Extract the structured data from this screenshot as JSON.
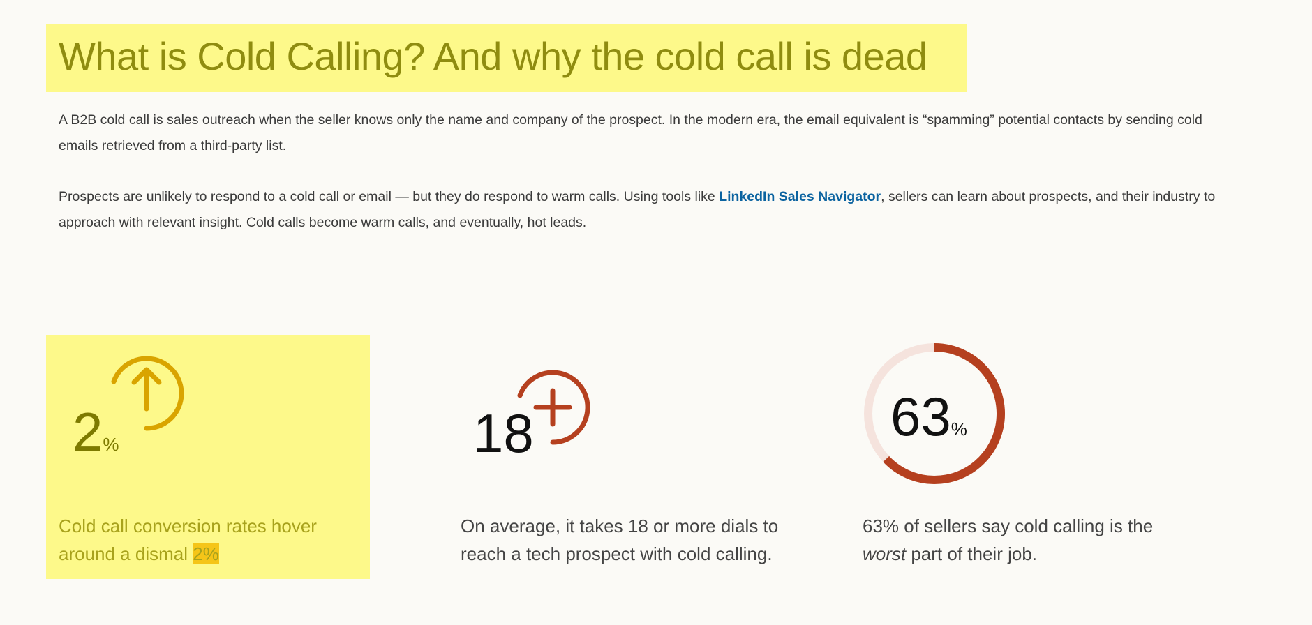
{
  "heading": "What is Cold Calling? And why the cold call is dead",
  "paragraph1": "A B2B cold call is sales outreach when the seller knows only the name and company of the prospect. In the modern era, the email equivalent is “spamming” potential contacts by sending cold emails retrieved from a third-party list.",
  "paragraph2": {
    "before": "Prospects are unlikely to respond to a cold call or email — but they do respond to warm calls. Using tools like ",
    "link": "LinkedIn Sales Navigator",
    "after": ", sellers can learn about prospects, and their industry to approach with relevant insight. Cold calls become warm calls, and eventually, hot leads."
  },
  "stats": [
    {
      "number": "2",
      "unit": "%",
      "icon": "arrow-up-circle-icon",
      "caption_before": "Cold call conversion rates hover around a dismal ",
      "caption_highlight": "2%",
      "color": "#d9a400"
    },
    {
      "number": "18",
      "unit": "",
      "icon": "plus-circle-icon",
      "caption": "On average, it takes 18 or more dials to reach a tech prospect with cold calling.",
      "color": "#b5401f"
    },
    {
      "number": "63",
      "unit": "%",
      "icon": "progress-ring",
      "progress_percent": 63,
      "caption_before": "63% of sellers say cold calling is the ",
      "caption_em": "worst",
      "caption_after": " part of their job.",
      "color": "#b5401f",
      "track_color": "#f5e3dd"
    }
  ],
  "colors": {
    "highlight": "#fdf98a",
    "link": "#0b63a0",
    "background": "#fbfaf6"
  }
}
